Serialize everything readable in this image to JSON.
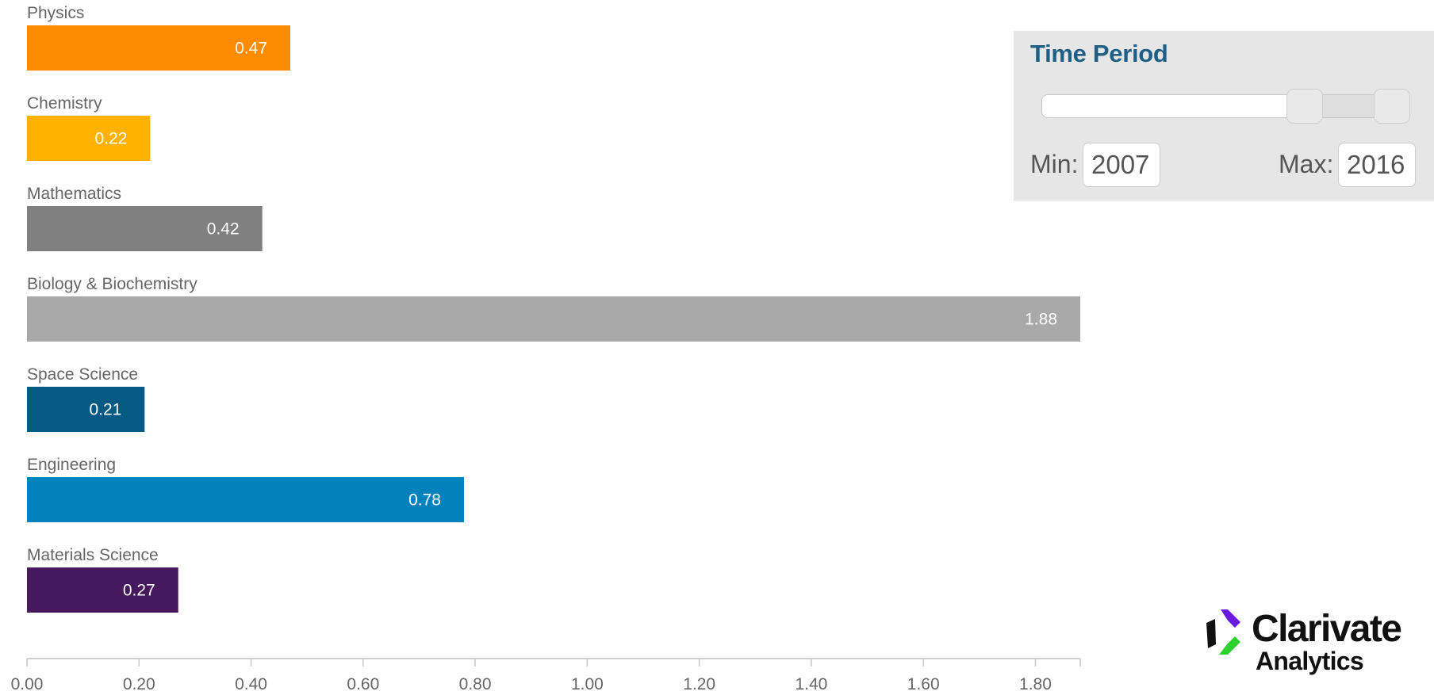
{
  "chart_data": {
    "type": "bar",
    "orientation": "horizontal",
    "categories": [
      "Physics",
      "Chemistry",
      "Mathematics",
      "Biology & Biochemistry",
      "Space Science",
      "Engineering",
      "Materials Science"
    ],
    "values": [
      0.47,
      0.22,
      0.42,
      1.88,
      0.21,
      0.78,
      0.27
    ],
    "value_labels": [
      "0.47",
      "0.22",
      "0.42",
      "1.88",
      "0.21",
      "0.78",
      "0.27"
    ],
    "colors": [
      "#FF8C00",
      "#FFB300",
      "#808080",
      "#A9A9A9",
      "#045A82",
      "#0282BD",
      "#46195F"
    ],
    "xlim": [
      0,
      1.88
    ],
    "x_ticks": [
      0,
      0.2,
      0.4,
      0.6,
      0.8,
      1.0,
      1.2,
      1.4,
      1.6,
      1.8
    ],
    "x_tick_labels": [
      "0.00",
      "0.20",
      "0.40",
      "0.60",
      "0.80",
      "1.00",
      "1.20",
      "1.40",
      "1.60",
      "1.80"
    ],
    "grid": false,
    "legend": "none",
    "title": "",
    "xlabel": "",
    "ylabel": ""
  },
  "time_period": {
    "title": "Time Period",
    "min_label": "Min:",
    "max_label": "Max:",
    "min_value": "2007",
    "max_value": "2016"
  },
  "logo": {
    "name": "Clarivate",
    "subtitle": "Analytics",
    "colors": [
      "#6A1BE2",
      "#2ED02E",
      "#111111"
    ]
  }
}
